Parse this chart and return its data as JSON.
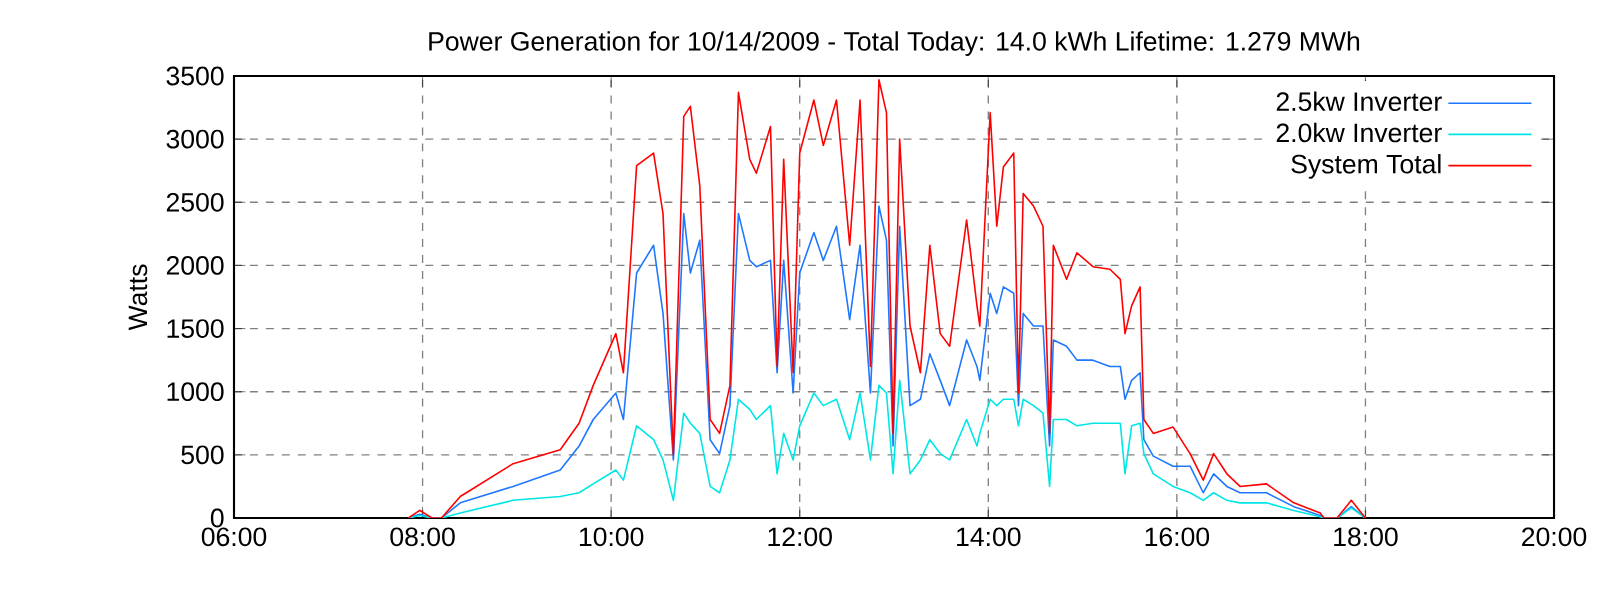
{
  "chart_data": {
    "type": "line",
    "title": "Power Generation for 10/14/2009 - Total Today: 14.0 kWh   Lifetime: 1.279 MWh",
    "ylabel": "Watts",
    "x": [
      7.85,
      7.97,
      8.1,
      8.2,
      8.4,
      8.96,
      9.46,
      9.66,
      9.81,
      10.05,
      10.13,
      10.27,
      10.45,
      10.55,
      10.66,
      10.77,
      10.84,
      10.94,
      11.05,
      11.15,
      11.26,
      11.35,
      11.47,
      11.54,
      11.69,
      11.76,
      11.83,
      11.93,
      12.0,
      12.15,
      12.25,
      12.39,
      12.53,
      12.64,
      12.75,
      12.84,
      12.92,
      12.99,
      13.06,
      13.17,
      13.28,
      13.38,
      13.49,
      13.59,
      13.77,
      13.88,
      13.91,
      14.02,
      14.09,
      14.16,
      14.27,
      14.32,
      14.37,
      14.48,
      14.58,
      14.65,
      14.69,
      14.83,
      14.94,
      15.11,
      15.29,
      15.4,
      15.45,
      15.52,
      15.61,
      15.65,
      15.75,
      15.96,
      16.14,
      16.28,
      16.39,
      16.53,
      16.67,
      16.95,
      17.24,
      17.52,
      17.56,
      17.7,
      17.85,
      18.0
    ],
    "series": [
      {
        "name": "2.5kw Inverter",
        "color": "#1e78ff",
        "values": [
          0,
          30,
          0,
          0,
          120,
          250,
          380,
          570,
          780,
          990,
          780,
          1940,
          2160,
          1620,
          460,
          2410,
          1940,
          2200,
          620,
          510,
          890,
          2410,
          2040,
          1990,
          2040,
          1150,
          2040,
          990,
          1940,
          2260,
          2040,
          2310,
          1570,
          2160,
          990,
          2470,
          2200,
          570,
          2310,
          890,
          940,
          1300,
          1090,
          890,
          1410,
          1200,
          1090,
          1780,
          1620,
          1830,
          1780,
          890,
          1620,
          1520,
          1520,
          570,
          1410,
          1360,
          1250,
          1250,
          1200,
          1200,
          940,
          1090,
          1150,
          620,
          490,
          410,
          410,
          200,
          350,
          250,
          200,
          200,
          90,
          20,
          0,
          0,
          90,
          0
        ]
      },
      {
        "name": "2.0kw Inverter",
        "color": "#00e6e6",
        "values": [
          0,
          20,
          0,
          0,
          40,
          140,
          170,
          200,
          270,
          380,
          300,
          730,
          620,
          460,
          140,
          830,
          750,
          670,
          250,
          200,
          460,
          940,
          860,
          780,
          890,
          350,
          670,
          460,
          730,
          990,
          890,
          940,
          620,
          990,
          460,
          1050,
          990,
          350,
          1090,
          350,
          460,
          620,
          510,
          460,
          780,
          570,
          670,
          940,
          890,
          940,
          940,
          730,
          940,
          890,
          830,
          250,
          780,
          780,
          730,
          750,
          750,
          750,
          350,
          730,
          750,
          510,
          350,
          250,
          200,
          140,
          200,
          140,
          120,
          120,
          60,
          10,
          0,
          0,
          80,
          0
        ]
      },
      {
        "name": "System Total",
        "color": "#ff0000",
        "values": [
          0,
          60,
          0,
          0,
          170,
          430,
          540,
          750,
          1050,
          1460,
          1150,
          2790,
          2890,
          2410,
          500,
          3180,
          3260,
          2630,
          780,
          670,
          1050,
          3370,
          2840,
          2730,
          3100,
          1200,
          2840,
          1150,
          2890,
          3310,
          2950,
          3310,
          2160,
          3310,
          1200,
          3470,
          3210,
          670,
          3000,
          1520,
          1150,
          2160,
          1460,
          1360,
          2360,
          1680,
          1520,
          3210,
          2310,
          2780,
          2890,
          990,
          2570,
          2470,
          2310,
          670,
          2160,
          1890,
          2100,
          1990,
          1970,
          1890,
          1460,
          1680,
          1830,
          780,
          670,
          720,
          510,
          300,
          510,
          350,
          250,
          270,
          120,
          40,
          0,
          0,
          140,
          0
        ]
      }
    ],
    "xlim": [
      6,
      20
    ],
    "xticks": [
      {
        "value": 6,
        "label": "06:00"
      },
      {
        "value": 8,
        "label": "08:00"
      },
      {
        "value": 10,
        "label": "10:00"
      },
      {
        "value": 12,
        "label": "12:00"
      },
      {
        "value": 14,
        "label": "14:00"
      },
      {
        "value": 16,
        "label": "16:00"
      },
      {
        "value": 18,
        "label": "18:00"
      },
      {
        "value": 20,
        "label": "20:00"
      }
    ],
    "ylim": [
      0,
      3500
    ],
    "yticks": [
      0,
      500,
      1000,
      1500,
      2000,
      2500,
      3000,
      3500
    ],
    "grid": true,
    "legend": "top right",
    "marker": "none",
    "line_style": "solid"
  }
}
